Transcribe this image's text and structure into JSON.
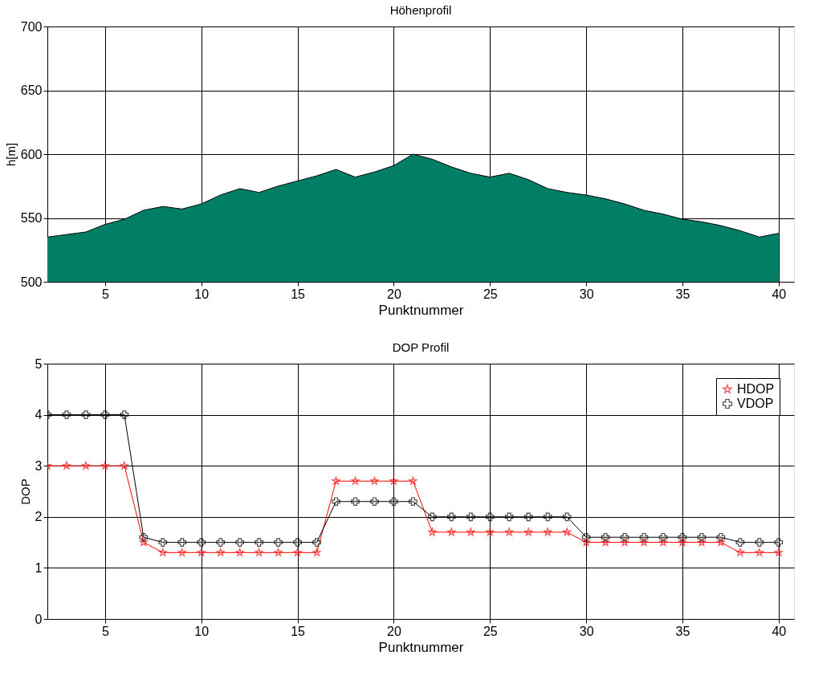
{
  "chart_data": [
    {
      "type": "area",
      "title": "Höhenprofil",
      "xlabel": "Punktnummer",
      "ylabel": "h[m]",
      "x": [
        2,
        3,
        4,
        5,
        6,
        7,
        8,
        9,
        10,
        11,
        12,
        13,
        14,
        15,
        16,
        17,
        18,
        19,
        20,
        21,
        22,
        23,
        24,
        25,
        26,
        27,
        28,
        29,
        30,
        31,
        32,
        33,
        34,
        35,
        36,
        37,
        38,
        39,
        40
      ],
      "series": [
        {
          "color": "#007f66",
          "values": [
            535,
            537,
            539,
            545,
            549,
            556,
            559,
            557,
            561,
            568,
            573,
            570,
            575,
            579,
            583,
            588,
            582,
            586,
            591,
            600,
            596,
            590,
            585,
            582,
            585,
            580,
            573,
            570,
            568,
            565,
            561,
            556,
            553,
            549,
            547,
            544,
            540,
            535,
            538
          ]
        }
      ],
      "xlim": [
        2,
        40.8
      ],
      "xticks": [
        5,
        10,
        15,
        20,
        25,
        30,
        35,
        40
      ],
      "ylim": [
        500,
        700
      ],
      "yticks": [
        500,
        550,
        600,
        650,
        700
      ],
      "grid": true
    },
    {
      "type": "line",
      "title": "DOP Profil",
      "xlabel": "Punktnummer",
      "ylabel": "DOP",
      "x": [
        2,
        3,
        4,
        5,
        6,
        7,
        8,
        9,
        10,
        11,
        12,
        13,
        14,
        15,
        16,
        17,
        18,
        19,
        20,
        21,
        22,
        23,
        24,
        25,
        26,
        27,
        28,
        29,
        30,
        31,
        32,
        33,
        34,
        35,
        36,
        37,
        38,
        39,
        40
      ],
      "series": [
        {
          "name": "HDOP",
          "color": "#ff0000",
          "marker": "star",
          "values": [
            3,
            3,
            3,
            3,
            3,
            1.5,
            1.3,
            1.3,
            1.3,
            1.3,
            1.3,
            1.3,
            1.3,
            1.3,
            1.3,
            2.7,
            2.7,
            2.7,
            2.7,
            2.7,
            1.7,
            1.7,
            1.7,
            1.7,
            1.7,
            1.7,
            1.7,
            1.7,
            1.5,
            1.5,
            1.5,
            1.5,
            1.5,
            1.5,
            1.5,
            1.5,
            1.3,
            1.3,
            1.3
          ]
        },
        {
          "name": "VDOP",
          "color": "#000000",
          "marker": "cross",
          "values": [
            4,
            4,
            4,
            4,
            4,
            1.6,
            1.5,
            1.5,
            1.5,
            1.5,
            1.5,
            1.5,
            1.5,
            1.5,
            1.5,
            2.3,
            2.3,
            2.3,
            2.3,
            2.3,
            2,
            2,
            2,
            2,
            2,
            2,
            2,
            2,
            1.6,
            1.6,
            1.6,
            1.6,
            1.6,
            1.6,
            1.6,
            1.6,
            1.5,
            1.5,
            1.5
          ]
        }
      ],
      "xlim": [
        2,
        40.8
      ],
      "xticks": [
        5,
        10,
        15,
        20,
        25,
        30,
        35,
        40
      ],
      "ylim": [
        0,
        5
      ],
      "yticks": [
        0,
        1,
        2,
        3,
        4,
        5
      ],
      "grid": true,
      "legend": "top right"
    }
  ]
}
